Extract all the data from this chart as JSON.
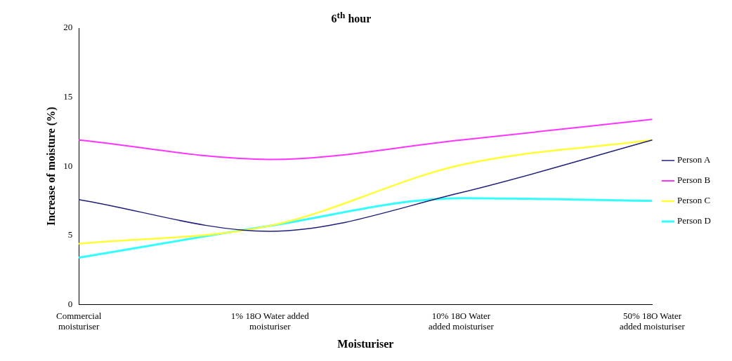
{
  "chart_data": {
    "type": "line",
    "title": "6$^{th}$ hour",
    "xlabel": "Moisturiser",
    "ylabel": "Increase of moisture (%)",
    "categories": [
      "Commercial moisturiser",
      "1% 18O Water added moisturiser",
      "10% 18O Water added moisturiser",
      "50% 18O Water added moisturiser"
    ],
    "series": [
      {
        "name": "Person A",
        "color": "#1f1f7a",
        "values": [
          7.6,
          5.3,
          8.1,
          11.9
        ]
      },
      {
        "name": "Person B",
        "color": "#ff33ff",
        "values": [
          11.9,
          10.5,
          11.9,
          13.4
        ]
      },
      {
        "name": "Person C",
        "color": "#ffff33",
        "values": [
          4.4,
          5.7,
          10.1,
          11.9
        ]
      },
      {
        "name": "Person D",
        "color": "#33ffff",
        "values": [
          3.4,
          5.7,
          7.7,
          7.5
        ]
      }
    ],
    "ylim": [
      0,
      20
    ],
    "yticks": [
      0,
      5,
      10,
      15,
      20
    ],
    "grid": false,
    "legend": "right",
    "marker": "none",
    "line_style": "solid"
  }
}
